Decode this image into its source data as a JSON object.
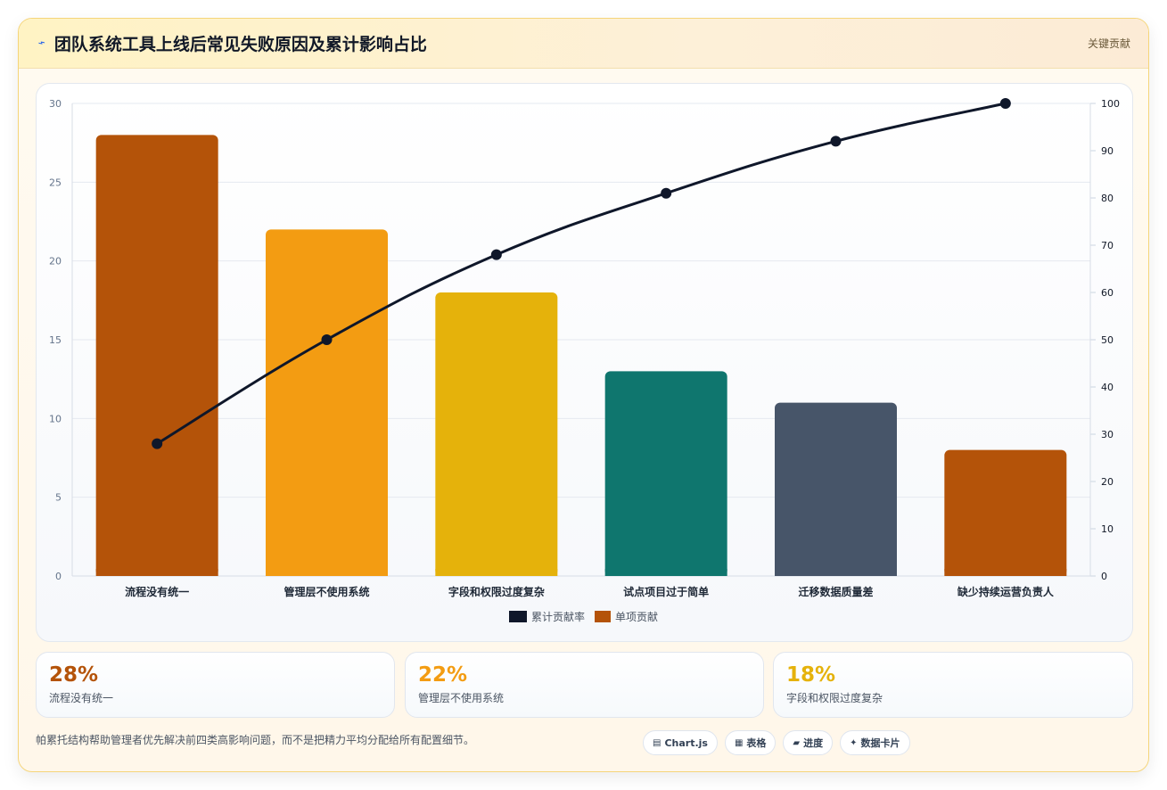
{
  "header": {
    "title": "团队系统工具上线后常见失败原因及累计影响占比",
    "badge": "关键贡献"
  },
  "colors": {
    "c1": "#b45309",
    "c2": "#f39c12",
    "c3": "#e5b20b",
    "c4": "#0f766e",
    "c5": "#475569",
    "c6": "#b45309",
    "line": "#0f172a"
  },
  "chart_data": {
    "type": "bar",
    "categories": [
      "流程没有统一",
      "管理层不使用系统",
      "字段和权限过度复杂",
      "试点项目过于简单",
      "迁移数据质量差",
      "缺少持续运营负责人"
    ],
    "series": [
      {
        "name": "单项贡献",
        "type": "bar",
        "values": [
          28,
          22,
          18,
          13,
          11,
          8
        ],
        "axis": "left"
      },
      {
        "name": "累计贡献率",
        "type": "line",
        "values": [
          28,
          50,
          68,
          81,
          92,
          100
        ],
        "axis": "right"
      }
    ],
    "ylim": [
      0,
      30
    ],
    "y2lim": [
      0,
      100
    ],
    "yticks": [
      0,
      5,
      10,
      15,
      20,
      25,
      30
    ],
    "y2ticks": [
      0,
      10,
      20,
      30,
      40,
      50,
      60,
      70,
      80,
      90,
      100
    ],
    "legend": [
      "累计贡献率",
      "单项贡献"
    ],
    "legend_position": "bottom",
    "grid": true
  },
  "stats": [
    {
      "value": "28%",
      "label": "流程没有统一",
      "color": "#b45309"
    },
    {
      "value": "22%",
      "label": "管理层不使用系统",
      "color": "#f39c12"
    },
    {
      "value": "18%",
      "label": "字段和权限过度复杂",
      "color": "#e5b20b"
    }
  ],
  "footer": {
    "note": "帕累托结构帮助管理者优先解决前四类高影响问题，而不是把精力平均分配给所有配置细节。",
    "tags": [
      {
        "icon": "▤",
        "label": "Chart.js"
      },
      {
        "icon": "▦",
        "label": "表格"
      },
      {
        "icon": "▰",
        "label": "进度"
      },
      {
        "icon": "✦",
        "label": "数据卡片"
      }
    ]
  }
}
